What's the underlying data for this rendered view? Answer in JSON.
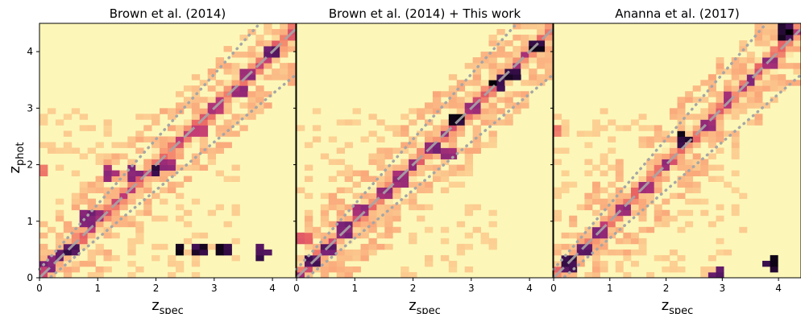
{
  "chart_data": [
    {
      "type": "heatmap",
      "title": "Brown et al. (2014)",
      "xlim": [
        0,
        4.4
      ],
      "ylim": [
        0,
        4.5
      ],
      "xticks": [
        "0",
        "1",
        "2",
        "3",
        "4"
      ],
      "yticks": [
        "0",
        "1",
        "2",
        "3",
        "4"
      ],
      "hotspots": [
        {
          "x": 0.2,
          "y": 0.25,
          "level": 0.85
        },
        {
          "x": 0.35,
          "y": 0.4,
          "level": 0.9
        },
        {
          "x": 0.5,
          "y": 0.5,
          "level": 0.95
        },
        {
          "x": 0.8,
          "y": 1.05,
          "level": 0.85
        },
        {
          "x": 1.0,
          "y": 1.1,
          "level": 0.8
        },
        {
          "x": 1.2,
          "y": 1.85,
          "level": 0.8
        },
        {
          "x": 1.6,
          "y": 1.85,
          "level": 0.85
        },
        {
          "x": 2.0,
          "y": 1.9,
          "level": 1.0
        },
        {
          "x": 2.2,
          "y": 2.0,
          "level": 0.8
        },
        {
          "x": 2.4,
          "y": 0.5,
          "level": 1.0
        },
        {
          "x": 2.8,
          "y": 0.5,
          "level": 1.0
        },
        {
          "x": 3.2,
          "y": 0.5,
          "level": 1.0
        },
        {
          "x": 3.8,
          "y": 0.45,
          "level": 0.95
        },
        {
          "x": 2.7,
          "y": 2.6,
          "level": 0.7
        },
        {
          "x": 3.0,
          "y": 3.0,
          "level": 0.75
        },
        {
          "x": 3.4,
          "y": 3.3,
          "level": 0.8
        },
        {
          "x": 3.6,
          "y": 3.6,
          "level": 0.8
        },
        {
          "x": 4.0,
          "y": 4.0,
          "level": 0.9
        },
        {
          "x": 0.05,
          "y": 0.15,
          "level": 0.7
        },
        {
          "x": 0.05,
          "y": 1.9,
          "level": 0.5
        }
      ]
    },
    {
      "type": "heatmap",
      "title": "Brown et al. (2014) + This work",
      "xlim": [
        0,
        4.4
      ],
      "ylim": [
        0,
        4.5
      ],
      "xticks": [
        "0",
        "1",
        "2",
        "3",
        "4"
      ],
      "yticks": [
        "0",
        "1",
        "2",
        "3",
        "4"
      ],
      "hotspots": [
        {
          "x": 0.25,
          "y": 0.3,
          "level": 0.95
        },
        {
          "x": 0.5,
          "y": 0.5,
          "level": 0.9
        },
        {
          "x": 0.8,
          "y": 0.85,
          "level": 0.85
        },
        {
          "x": 1.1,
          "y": 1.2,
          "level": 0.8
        },
        {
          "x": 1.5,
          "y": 1.5,
          "level": 0.8
        },
        {
          "x": 1.8,
          "y": 1.75,
          "level": 0.8
        },
        {
          "x": 2.0,
          "y": 2.0,
          "level": 0.8
        },
        {
          "x": 2.3,
          "y": 2.3,
          "level": 0.85
        },
        {
          "x": 2.6,
          "y": 2.2,
          "level": 0.8
        },
        {
          "x": 2.8,
          "y": 2.8,
          "level": 1.0
        },
        {
          "x": 3.0,
          "y": 3.0,
          "level": 0.8
        },
        {
          "x": 3.5,
          "y": 3.45,
          "level": 1.0
        },
        {
          "x": 3.7,
          "y": 3.6,
          "level": 1.0
        },
        {
          "x": 4.1,
          "y": 4.1,
          "level": 1.0
        },
        {
          "x": 0.1,
          "y": 0.7,
          "level": 0.6
        }
      ]
    },
    {
      "type": "heatmap",
      "title": "Ananna et al. (2017)",
      "xlim": [
        0,
        4.4
      ],
      "ylim": [
        0,
        4.5
      ],
      "xticks": [
        "0",
        "1",
        "2",
        "3",
        "4"
      ],
      "yticks": [
        "0",
        "1",
        "2",
        "3",
        "4"
      ],
      "hotspots": [
        {
          "x": 0.25,
          "y": 0.25,
          "level": 0.95
        },
        {
          "x": 0.5,
          "y": 0.5,
          "level": 0.9
        },
        {
          "x": 0.8,
          "y": 0.8,
          "level": 0.85
        },
        {
          "x": 1.2,
          "y": 1.2,
          "level": 0.8
        },
        {
          "x": 1.6,
          "y": 1.6,
          "level": 0.8
        },
        {
          "x": 2.0,
          "y": 2.0,
          "level": 0.8
        },
        {
          "x": 2.3,
          "y": 2.45,
          "level": 1.0
        },
        {
          "x": 2.7,
          "y": 2.7,
          "level": 0.8
        },
        {
          "x": 3.1,
          "y": 3.2,
          "level": 0.8
        },
        {
          "x": 3.5,
          "y": 3.5,
          "level": 0.85
        },
        {
          "x": 3.8,
          "y": 3.8,
          "level": 0.8
        },
        {
          "x": 4.1,
          "y": 4.35,
          "level": 1.0
        },
        {
          "x": 3.9,
          "y": 0.25,
          "level": 1.0
        },
        {
          "x": 2.95,
          "y": 0.05,
          "level": 0.9
        },
        {
          "x": 0.05,
          "y": 2.6,
          "level": 0.5
        }
      ]
    }
  ],
  "axes": {
    "xlabel_main": "z",
    "xlabel_sub": "spec",
    "ylabel_main": "z",
    "ylabel_sub": "phot"
  },
  "colors": {
    "background": "#fcf7b8",
    "colormap": "magma_r",
    "diagonal": "#a6a6a6"
  }
}
